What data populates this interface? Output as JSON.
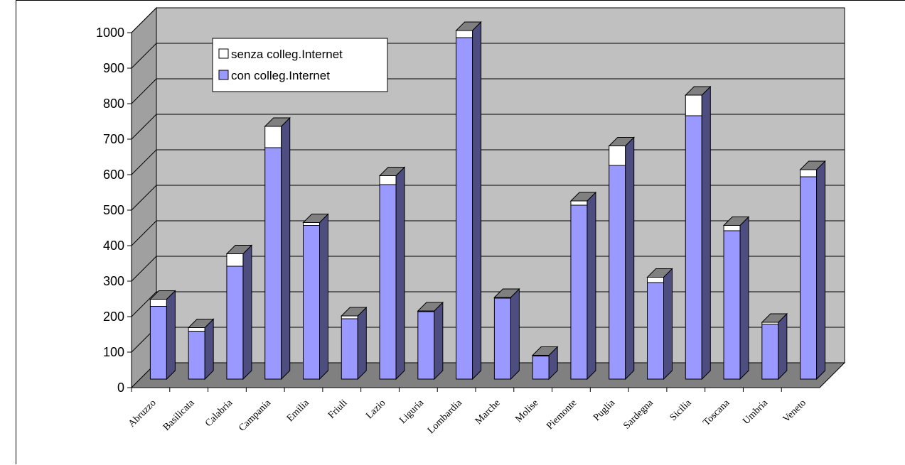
{
  "chart_data": {
    "type": "bar",
    "stacked": true,
    "three_d": true,
    "title": "",
    "xlabel": "",
    "ylabel": "",
    "ylim": [
      0,
      1000
    ],
    "yticks": [
      0,
      100,
      200,
      300,
      400,
      500,
      600,
      700,
      800,
      900,
      1000
    ],
    "grid": true,
    "legend_position": "top-left",
    "categories": [
      "Abruzzo",
      "Basilicata",
      "Calabria",
      "Campania",
      "Emilia",
      "Friuli",
      "Lazio",
      "Liguria",
      "Lombardia",
      "Marche",
      "Molise",
      "Piemonte",
      "Puglia",
      "Sardegna",
      "Sicilia",
      "Toscana",
      "Umbria",
      "Veneto"
    ],
    "series": [
      {
        "name": "con colleg.Internet",
        "color": "#9999ff",
        "values": [
          205,
          135,
          318,
          652,
          433,
          170,
          548,
          190,
          962,
          228,
          65,
          490,
          602,
          272,
          742,
          418,
          155,
          570
        ]
      },
      {
        "name": "senza colleg.Internet",
        "color": "#ffffff",
        "values": [
          20,
          10,
          35,
          60,
          8,
          8,
          25,
          2,
          20,
          2,
          2,
          12,
          55,
          15,
          58,
          15,
          5,
          20
        ]
      }
    ],
    "colors": {
      "plot_back": "#c0c0c0",
      "floor": "#808080",
      "side_wall": "#a0a0a0",
      "bar_side": "#4d4d80",
      "bar_top": "#808080"
    }
  }
}
